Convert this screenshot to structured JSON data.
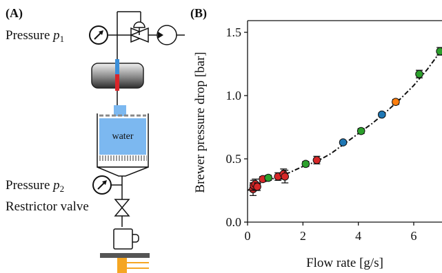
{
  "panel_a": {
    "label": "(A)",
    "pressure_1": {
      "text": "Pressure ",
      "symbol": "p",
      "subscript": "1"
    },
    "pressure_2": {
      "text": "Pressure ",
      "symbol": "p",
      "subscript": "2"
    },
    "restrictor_label": "Restrictor valve",
    "water_label": "water",
    "colors": {
      "water": "#7cb8f0",
      "boiler_top": "#e6e6e6",
      "boiler_bottom": "#3c3c3c",
      "probe_hot": "#d9252a",
      "probe_cold": "#3b8fd9",
      "scale": "#f5a623",
      "scale_plate": "#555555"
    }
  },
  "panel_b": {
    "label": "(B)"
  },
  "chart_data": {
    "type": "scatter",
    "xlabel": "Flow rate [g/s]",
    "ylabel": "Brewer pressure drop [bar]",
    "xlim": [
      0,
      7
    ],
    "ylim": [
      0,
      1.55
    ],
    "x_ticks": [
      0,
      2,
      4,
      6
    ],
    "y_ticks": [
      0.0,
      0.5,
      1.0,
      1.5
    ],
    "x_tick_labels": [
      "0",
      "2",
      "4",
      "6"
    ],
    "y_tick_labels": [
      "0.0",
      "0.5",
      "1.0",
      "1.5"
    ],
    "grid": false,
    "fit_curve": {
      "style": "dash-dot",
      "color": "#111111",
      "points": [
        [
          0.0,
          0.25
        ],
        [
          0.5,
          0.31
        ],
        [
          1.0,
          0.35
        ],
        [
          1.5,
          0.39
        ],
        [
          2.0,
          0.44
        ],
        [
          2.5,
          0.48
        ],
        [
          3.0,
          0.54
        ],
        [
          3.5,
          0.62
        ],
        [
          4.0,
          0.7
        ],
        [
          4.5,
          0.78
        ],
        [
          5.0,
          0.87
        ],
        [
          5.5,
          0.97
        ],
        [
          6.0,
          1.08
        ],
        [
          6.5,
          1.21
        ],
        [
          7.0,
          1.36
        ],
        [
          7.2,
          1.42
        ]
      ]
    },
    "series": [
      {
        "color": "#d62728",
        "points": [
          {
            "x": 0.2,
            "y": 0.26,
            "err": 0.05
          },
          {
            "x": 0.22,
            "y": 0.29,
            "err": 0.04
          },
          {
            "x": 0.28,
            "y": 0.3,
            "err": 0.04
          },
          {
            "x": 0.35,
            "y": 0.28,
            "err": 0.03
          },
          {
            "x": 0.55,
            "y": 0.34,
            "err": 0.02
          },
          {
            "x": 1.1,
            "y": 0.36,
            "err": 0.03
          },
          {
            "x": 1.3,
            "y": 0.38,
            "err": 0.04
          },
          {
            "x": 1.35,
            "y": 0.36,
            "err": 0.05
          },
          {
            "x": 2.5,
            "y": 0.49,
            "err": 0.03
          }
        ]
      },
      {
        "color": "#2ca02c",
        "points": [
          {
            "x": 0.75,
            "y": 0.35,
            "err": 0.02
          },
          {
            "x": 2.1,
            "y": 0.46,
            "err": 0.02
          },
          {
            "x": 4.1,
            "y": 0.72,
            "err": 0.02
          },
          {
            "x": 6.2,
            "y": 1.17,
            "err": 0.03
          },
          {
            "x": 6.95,
            "y": 1.35,
            "err": 0.03
          }
        ]
      },
      {
        "color": "#ff7f0e",
        "points": [
          {
            "x": 5.35,
            "y": 0.95,
            "err": 0.02
          }
        ]
      },
      {
        "color": "#1f77b4",
        "points": [
          {
            "x": 3.45,
            "y": 0.63,
            "err": 0.015
          },
          {
            "x": 4.85,
            "y": 0.85,
            "err": 0.015
          }
        ]
      }
    ]
  }
}
